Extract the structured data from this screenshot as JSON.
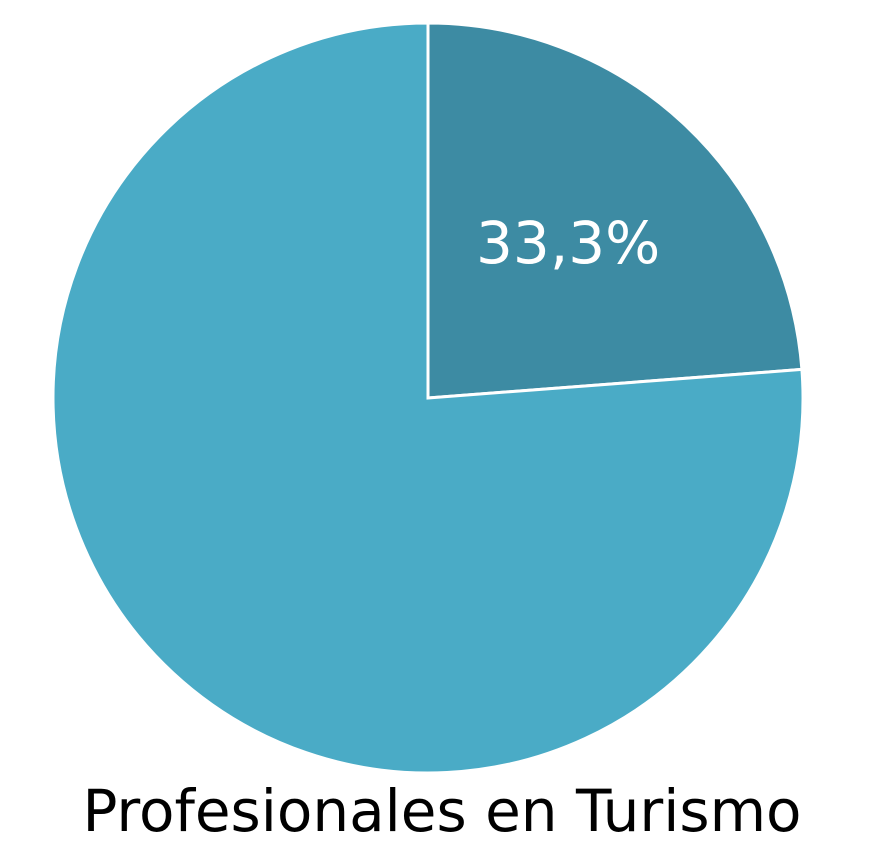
{
  "chart_data": {
    "type": "pie",
    "title": "Profesionales en Turismo",
    "categories": [
      null,
      null
    ],
    "values": [
      33.3,
      106.7
    ],
    "value_labels": [
      "33,3%",
      null
    ],
    "colors": [
      "#3d8ba3",
      "#4aabc6"
    ]
  }
}
